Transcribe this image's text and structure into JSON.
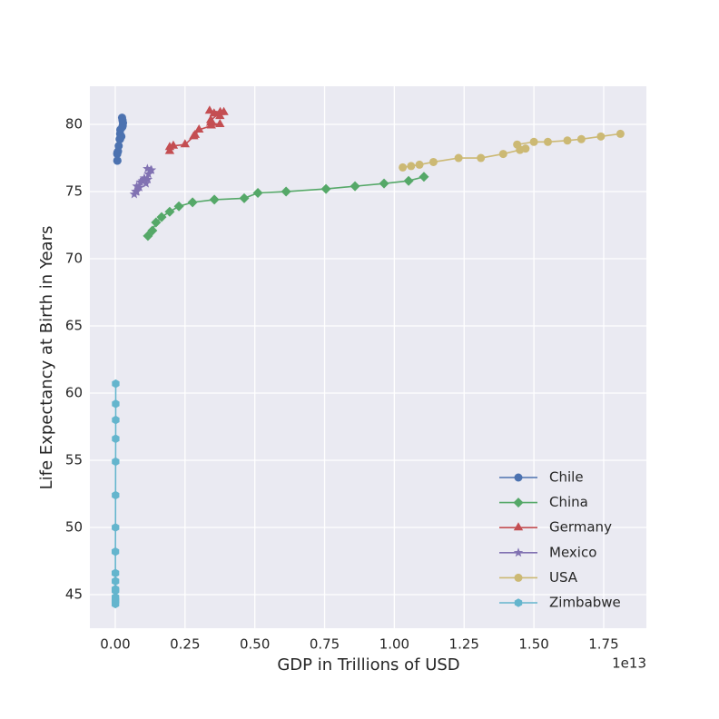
{
  "chart_data": {
    "type": "line",
    "xlabel": "GDP in Trillions of USD",
    "ylabel": "Life Expectancy at Birth in Years",
    "x_offset_label": "1e13",
    "xlim": [
      -0.091,
      1.903
    ],
    "ylim": [
      42.5,
      82.84
    ],
    "xticks": [
      {
        "value": 0,
        "label": "0.00"
      },
      0.25,
      {
        "value": 0.5,
        "label": "0.50"
      },
      0.75,
      {
        "value": 1,
        "label": "1.00"
      },
      1.25,
      {
        "value": 1.5,
        "label": "1.50"
      },
      1.75
    ],
    "yticks": [
      45,
      50,
      55,
      60,
      65,
      70,
      75,
      80
    ],
    "grid": true,
    "legend": "lower right",
    "series": [
      {
        "name": "Chile",
        "color": "#4c72b0",
        "marker": "circle",
        "x": [
          0.0078,
          0.0071,
          0.007,
          0.0076,
          0.0099,
          0.0123,
          0.0155,
          0.0173,
          0.018,
          0.0172,
          0.0218,
          0.0252,
          0.0267,
          0.0278,
          0.026,
          0.0243
        ],
        "values": [
          77.3,
          77.3,
          77.8,
          77.9,
          78.0,
          78.4,
          78.9,
          78.9,
          79.6,
          79.3,
          79.1,
          79.8,
          79.9,
          80.1,
          80.3,
          80.5
        ]
      },
      {
        "name": "China",
        "color": "#55a868",
        "marker": "diamond",
        "x": [
          0.117,
          0.133,
          0.146,
          0.166,
          0.195,
          0.228,
          0.277,
          0.355,
          0.462,
          0.511,
          0.612,
          0.755,
          0.859,
          0.963,
          1.051,
          1.106
        ],
        "values": [
          71.7,
          72.1,
          72.7,
          73.1,
          73.5,
          73.9,
          74.2,
          74.4,
          74.5,
          74.9,
          75.0,
          75.2,
          75.4,
          75.6,
          75.8,
          76.1
        ]
      },
      {
        "name": "Germany",
        "color": "#c44e52",
        "marker": "triangle",
        "x": [
          0.195,
          0.195,
          0.208,
          0.25,
          0.281,
          0.286,
          0.3,
          0.344,
          0.375,
          0.342,
          0.342,
          0.376,
          0.354,
          0.375,
          0.389,
          0.338
        ],
        "values": [
          78.0,
          78.3,
          78.4,
          78.5,
          79.1,
          79.2,
          79.6,
          79.9,
          80.0,
          80.1,
          80.3,
          80.9,
          80.8,
          80.6,
          80.9,
          81.0
        ]
      },
      {
        "name": "Mexico",
        "color": "#8172b2",
        "marker": "star",
        "x": [
          0.068,
          0.075,
          0.077,
          0.073,
          0.077,
          0.087,
          0.097,
          0.104,
          0.11,
          0.09,
          0.105,
          0.117,
          0.119,
          0.127,
          0.13,
          0.115
        ],
        "values": [
          74.8,
          75.0,
          75.0,
          75.0,
          75.4,
          75.3,
          75.8,
          76.0,
          75.6,
          75.7,
          75.9,
          75.9,
          76.3,
          76.6,
          76.6,
          76.7
        ]
      },
      {
        "name": "USA",
        "color": "#ccb974",
        "marker": "circle",
        "x": [
          1.03,
          1.06,
          1.09,
          1.14,
          1.23,
          1.31,
          1.39,
          1.45,
          1.47,
          1.44,
          1.5,
          1.55,
          1.62,
          1.67,
          1.74,
          1.81
        ],
        "values": [
          76.8,
          76.9,
          77.0,
          77.2,
          77.5,
          77.5,
          77.8,
          78.1,
          78.2,
          78.5,
          78.7,
          78.7,
          78.8,
          78.9,
          79.1,
          79.3
        ]
      },
      {
        "name": "Zimbabwe",
        "color": "#64b5cd",
        "marker": "hexagon",
        "x": [
          0.00066,
          0.00067,
          0.00063,
          0.00057,
          0.00055,
          0.00057,
          0.00054,
          0.00052,
          0.00044,
          0.00083,
          0.001,
          0.0012,
          0.0014,
          0.0015,
          0.0015,
          0.0016
        ],
        "values": [
          46.0,
          45.3,
          44.8,
          44.5,
          44.3,
          44.6,
          45.4,
          46.6,
          48.2,
          50.0,
          52.4,
          54.9,
          56.6,
          58.0,
          59.2,
          60.7
        ]
      }
    ]
  }
}
